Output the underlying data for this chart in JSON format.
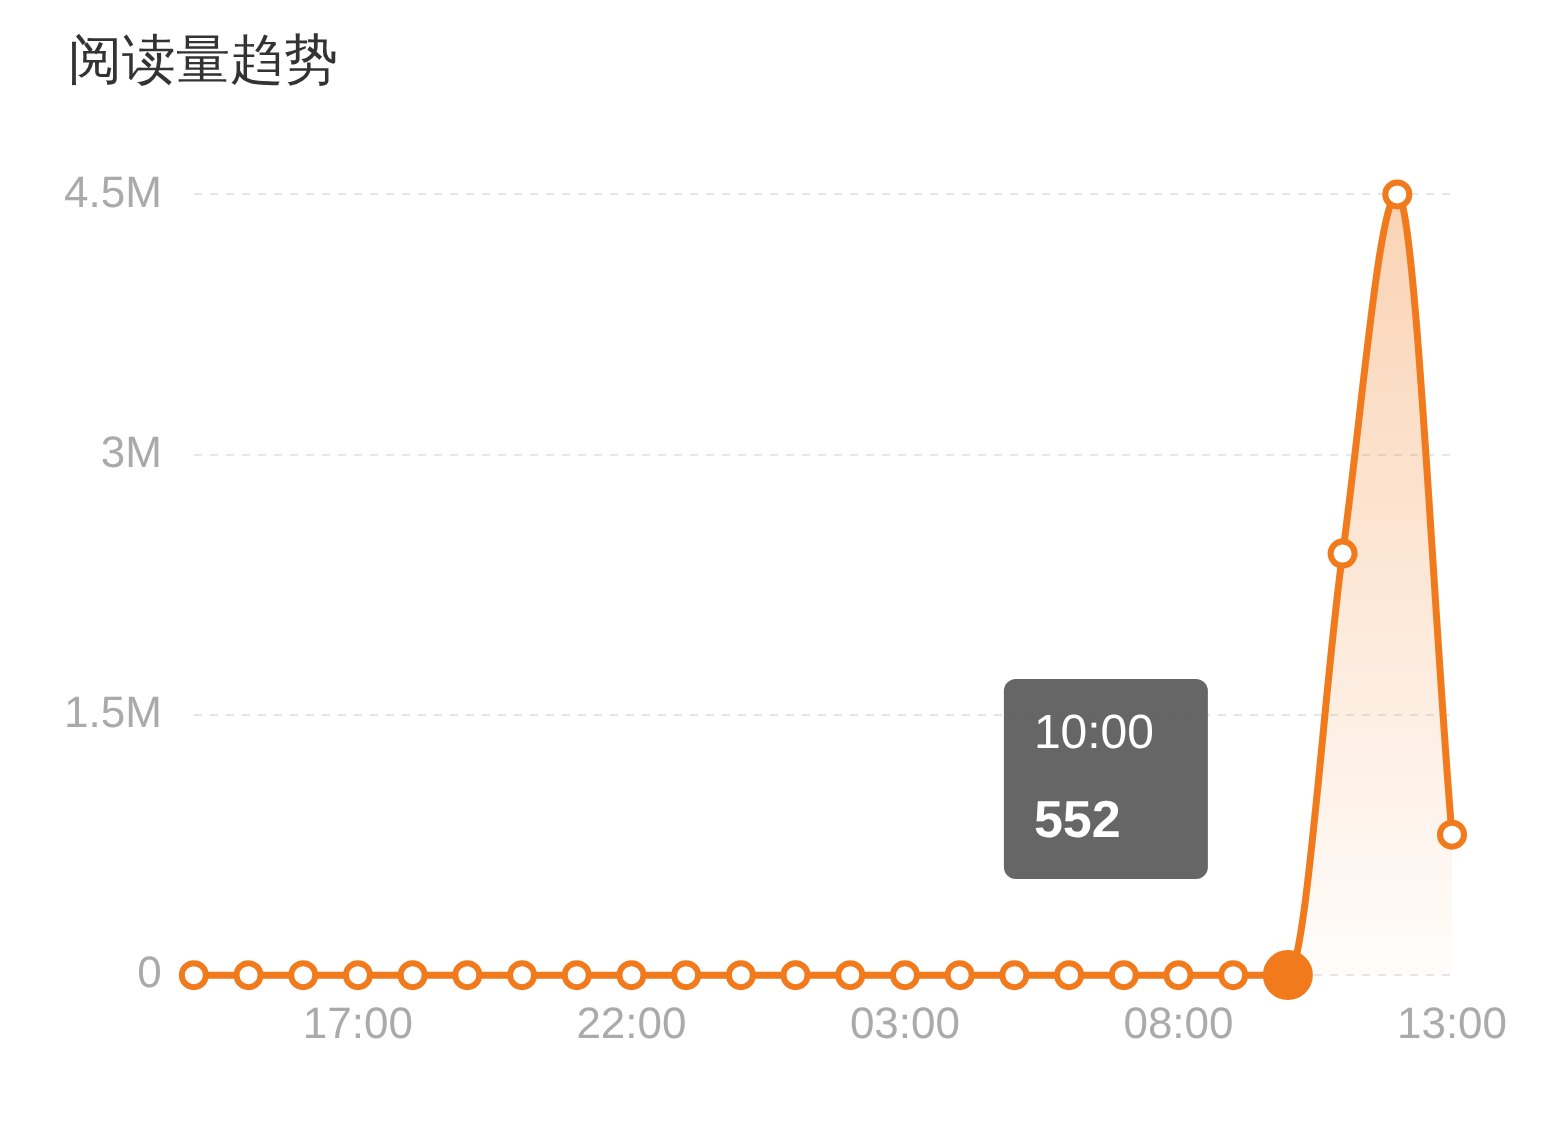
{
  "chart_data": {
    "type": "area",
    "title": "阅读量趋势",
    "categories": [
      null,
      null,
      null,
      "17:00",
      null,
      null,
      null,
      null,
      "22:00",
      null,
      null,
      null,
      null,
      "03:00",
      null,
      null,
      null,
      null,
      "08:00",
      null,
      null,
      null,
      null,
      "13:00"
    ],
    "series": [
      {
        "color": "#f07a1c",
        "values": [
          0,
          0,
          0,
          0,
          0,
          0,
          0,
          0,
          0,
          0,
          0,
          0,
          0,
          0,
          0,
          0,
          0,
          0,
          0,
          0,
          552,
          2430000,
          4500000,
          810000
        ]
      }
    ],
    "annotations": [
      "10:00",
      {
        "text": "552",
        "y": 552
      }
    ],
    "ylim": [
      0,
      4500000
    ],
    "yticks": [
      0,
      {
        "value": 1500000,
        "label": "1.5M"
      },
      {
        "value": 3000000,
        "label": "3M"
      },
      {
        "value": 4500000,
        "label": "4.5M"
      }
    ],
    "grid": "y",
    "marker": "circle",
    "legend": false
  }
}
